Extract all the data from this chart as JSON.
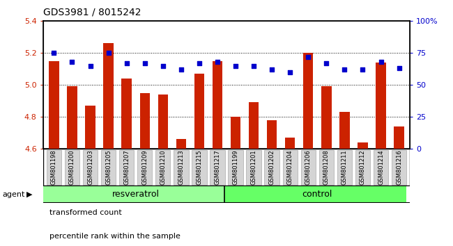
{
  "title": "GDS3981 / 8015242",
  "categories": [
    "GSM801198",
    "GSM801200",
    "GSM801203",
    "GSM801205",
    "GSM801207",
    "GSM801209",
    "GSM801210",
    "GSM801213",
    "GSM801215",
    "GSM801217",
    "GSM801199",
    "GSM801201",
    "GSM801202",
    "GSM801204",
    "GSM801206",
    "GSM801208",
    "GSM801211",
    "GSM801212",
    "GSM801214",
    "GSM801216"
  ],
  "bar_values": [
    5.15,
    4.99,
    4.87,
    5.26,
    5.04,
    4.95,
    4.94,
    4.66,
    5.07,
    5.15,
    4.8,
    4.89,
    4.78,
    4.67,
    5.2,
    4.99,
    4.83,
    4.64,
    5.14,
    4.74
  ],
  "dot_values": [
    75,
    68,
    65,
    75,
    67,
    67,
    65,
    62,
    67,
    68,
    65,
    65,
    62,
    60,
    72,
    67,
    62,
    62,
    68,
    63
  ],
  "bar_color": "#cc2200",
  "dot_color": "#0000cc",
  "ylim_left": [
    4.6,
    5.4
  ],
  "ylim_right": [
    0,
    100
  ],
  "yticks_left": [
    4.6,
    4.8,
    5.0,
    5.2,
    5.4
  ],
  "yticks_right": [
    0,
    25,
    50,
    75,
    100
  ],
  "ytick_labels_right": [
    "0",
    "25",
    "50",
    "75",
    "100%"
  ],
  "group1_label": "resveratrol",
  "group2_label": "control",
  "group1_color": "#99ff99",
  "group2_color": "#66ff66",
  "agent_label": "agent",
  "legend1": "transformed count",
  "legend2": "percentile rank within the sample",
  "bar_width": 0.55,
  "background_color": "#ffffff",
  "grid_color": "#000000"
}
